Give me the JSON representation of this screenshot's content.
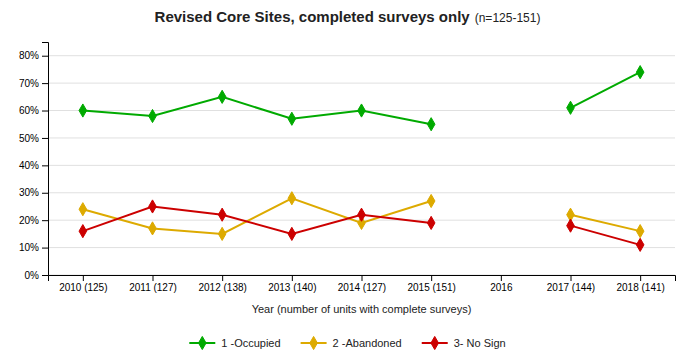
{
  "chart_data": {
    "type": "line",
    "title": "Revised Core Sites, completed surveys only ",
    "subtitle": "(n=125-151)",
    "x_label": "Year (number of units with complete surveys)",
    "categories": [
      "2010 (125)",
      "2011 (127)",
      "2012 (138)",
      "2013 (140)",
      "2014 (127)",
      "2015 (151)",
      "2016",
      "2017 (144)",
      "2018 (141)"
    ],
    "series": [
      {
        "name": "1 -Occupied",
        "color": "#00aa00",
        "marker": "diamond",
        "line_style": "solid",
        "values": [
          0.6,
          0.58,
          0.65,
          0.57,
          0.6,
          0.55,
          null,
          0.61,
          0.74
        ]
      },
      {
        "name": "2 -Abandoned",
        "color": "#ddaa00",
        "marker": "diamond",
        "line_style": "solid",
        "values": [
          0.24,
          0.17,
          0.15,
          0.28,
          0.19,
          0.27,
          null,
          0.22,
          0.16
        ]
      },
      {
        "name": "3- No Sign",
        "color": "#cc0000",
        "marker": "diamond",
        "line_style": "solid",
        "values": [
          0.16,
          0.25,
          0.22,
          0.15,
          0.22,
          0.19,
          null,
          0.18,
          0.11
        ]
      }
    ],
    "ylim": [
      0.0,
      0.85
    ],
    "yticks": [
      {
        "value": 0.0,
        "label": "0%"
      },
      {
        "value": 0.1,
        "label": "10%"
      },
      {
        "value": 0.2,
        "label": "20%"
      },
      {
        "value": 0.3,
        "label": "30%"
      },
      {
        "value": 0.4,
        "label": "40%"
      },
      {
        "value": 0.5,
        "label": "50%"
      },
      {
        "value": 0.6,
        "label": "60%"
      },
      {
        "value": 0.7,
        "label": "70%"
      },
      {
        "value": 0.8,
        "label": "80%"
      }
    ],
    "grid": true,
    "legend": "bottom"
  }
}
